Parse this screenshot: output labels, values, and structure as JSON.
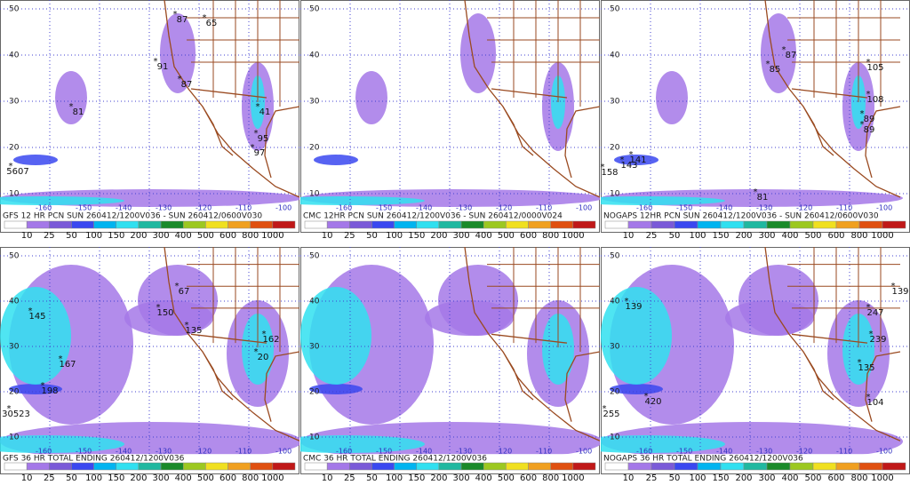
{
  "panels": [
    {
      "caption": "GFS 12 HR PCN SUN 260412/1200V036 - SUN 260412/0600V030",
      "markers": [
        "87",
        "65",
        "91",
        "87",
        "81",
        "41",
        "95",
        "97",
        "5607"
      ]
    },
    {
      "caption": "CMC 12HR PCN SUN 260412/1200V036 - SUN 260412/0000V024",
      "markers": []
    },
    {
      "caption": "NOGAPS 12HR PCN SUN 260412/1200V036 - SUN 260412/0600V030",
      "markers": [
        "87",
        "85",
        "105",
        "108",
        "89",
        "89",
        "141",
        "143",
        "158",
        "81"
      ]
    },
    {
      "caption": "GFS 36 HR TOTAL ENDING 260412/1200V036",
      "markers": [
        "145",
        "67",
        "150",
        "135",
        "162",
        "167",
        "20",
        "198",
        "30523"
      ]
    },
    {
      "caption": "CMC 36 HR TOTAL ENDING 260412/1200V036",
      "markers": []
    },
    {
      "caption": "NOGAPS 36 HR TOTAL ENDING 260412/1200V036",
      "markers": [
        "139",
        "139",
        "247",
        "239",
        "135",
        "104",
        "420",
        "255"
      ]
    }
  ],
  "lat_labels": [
    "50",
    "40",
    "30",
    "20",
    "10"
  ],
  "lon_labels": [
    "-160",
    "-150",
    "-140",
    "-130",
    "-120",
    "-110",
    "-100"
  ],
  "colorbar": {
    "labels": [
      "10",
      "25",
      "50",
      "100",
      "150",
      "200",
      "300",
      "400",
      "500",
      "600",
      "800",
      "1000"
    ],
    "colors": [
      "#ffffff",
      "#a478e8",
      "#7a5ad8",
      "#3a48f0",
      "#00b4f0",
      "#30e0f0",
      "#20b8a0",
      "#1a8a2a",
      "#9cc820",
      "#f0e020",
      "#f0a020",
      "#e05010",
      "#c01818"
    ]
  }
}
